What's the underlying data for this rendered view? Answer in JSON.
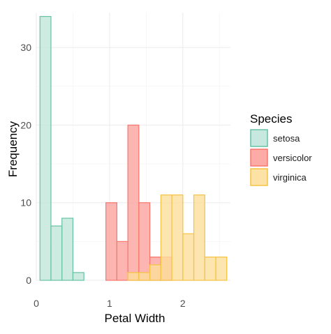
{
  "chart_data": {
    "type": "bar",
    "subtype": "overlapping histogram",
    "title": "",
    "xlabel": "Petal Width",
    "ylabel": "Frequency",
    "xlim": [
      0,
      2.65
    ],
    "ylim": [
      0,
      34.5
    ],
    "x_ticks": [
      0,
      1,
      2
    ],
    "y_ticks": [
      0,
      10,
      20,
      30
    ],
    "grid": true,
    "bin_width": 0.15,
    "bin_starts": [
      0.05,
      0.2,
      0.35,
      0.5,
      0.65,
      0.8,
      0.95,
      1.1,
      1.25,
      1.4,
      1.55,
      1.7,
      1.85,
      2.0,
      2.15,
      2.3,
      2.45
    ],
    "legend": {
      "title": "Species",
      "position": "right"
    },
    "series": [
      {
        "name": "setosa",
        "color": "#66C2A5",
        "fill": "#C1E6DA",
        "values": [
          34,
          7,
          8,
          1,
          0,
          0,
          0,
          0,
          0,
          0,
          0,
          0,
          0,
          0,
          0,
          0,
          0
        ]
      },
      {
        "name": "versicolor",
        "color": "#F8766D",
        "fill": "#FCA29D",
        "values": [
          0,
          0,
          0,
          0,
          0,
          0,
          10,
          5,
          20,
          10,
          3,
          3,
          0,
          0,
          0,
          0,
          0
        ]
      },
      {
        "name": "virginica",
        "color": "#F5C242",
        "fill": "#FCDF9B",
        "values": [
          0,
          0,
          0,
          0,
          0,
          0,
          0,
          0,
          1,
          1,
          2,
          11,
          11,
          6,
          11,
          3,
          3
        ]
      }
    ]
  }
}
